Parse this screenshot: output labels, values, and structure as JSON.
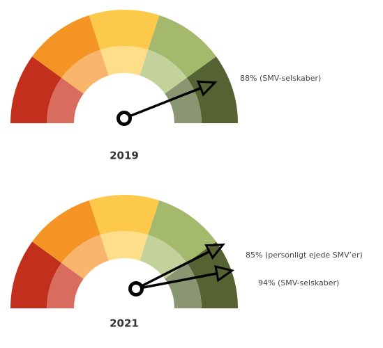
{
  "chart_data": [
    {
      "type": "gauge",
      "title": "2019",
      "ylim": [
        0,
        100
      ],
      "outer_colors": [
        "#c32f1d",
        "#f39424",
        "#fdc94b",
        "#a4b96b",
        "#556333"
      ],
      "inner_colors": [
        "#d86c5f",
        "#f8b56b",
        "#fede89",
        "#c3d19b",
        "#8a9672"
      ],
      "values": [
        88
      ],
      "value_labels": [
        "88% (SMV-selskaber)"
      ]
    },
    {
      "type": "gauge",
      "title": "2021",
      "ylim": [
        0,
        100
      ],
      "outer_colors": [
        "#c32f1d",
        "#f39424",
        "#fdc94b",
        "#a4b96b",
        "#556333"
      ],
      "inner_colors": [
        "#d86c5f",
        "#f8b56b",
        "#fede89",
        "#c3d19b",
        "#8a9672"
      ],
      "values": [
        85,
        94
      ],
      "value_labels": [
        "85% (personligt ejede SMV’er)",
        "94% (SMV-selskaber)"
      ]
    }
  ]
}
